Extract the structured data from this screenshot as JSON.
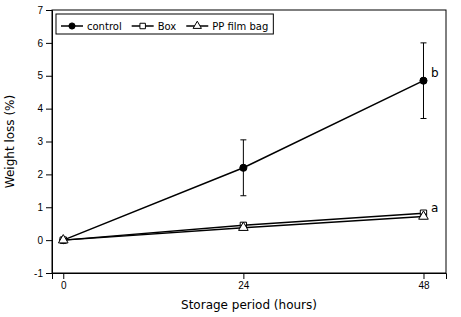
{
  "chart_data": {
    "type": "line",
    "xlabel": "Storage period (hours)",
    "ylabel": "Weight loss (%)",
    "x": [
      0,
      24,
      48
    ],
    "series": [
      {
        "name": "control",
        "color": "black",
        "marker": "circle",
        "values": [
          0.0,
          2.2,
          4.85
        ],
        "errors": [
          0.05,
          0.85,
          1.15
        ]
      },
      {
        "name": "Box",
        "color": "black",
        "marker": "square-open",
        "values": [
          0.0,
          0.45,
          0.82
        ],
        "errors": [
          0.02,
          0.08,
          0.08
        ]
      },
      {
        "name": "PP film bag",
        "color": "black",
        "marker": "triangle-open",
        "values": [
          0.0,
          0.38,
          0.72
        ],
        "errors": [
          0.02,
          0.07,
          0.07
        ]
      }
    ],
    "xlim": [
      -1.5,
      51
    ],
    "ylim": [
      -1,
      7
    ],
    "xticks": [
      0,
      24,
      48
    ],
    "yticks": [
      -1,
      0,
      1,
      2,
      3,
      4,
      5,
      6,
      7
    ],
    "annotations": [
      {
        "text": "b",
        "x": 49.0,
        "y": 4.95
      },
      {
        "text": "a",
        "x": 49.0,
        "y": 0.85
      }
    ],
    "legend": "upper left",
    "grid": false
  }
}
